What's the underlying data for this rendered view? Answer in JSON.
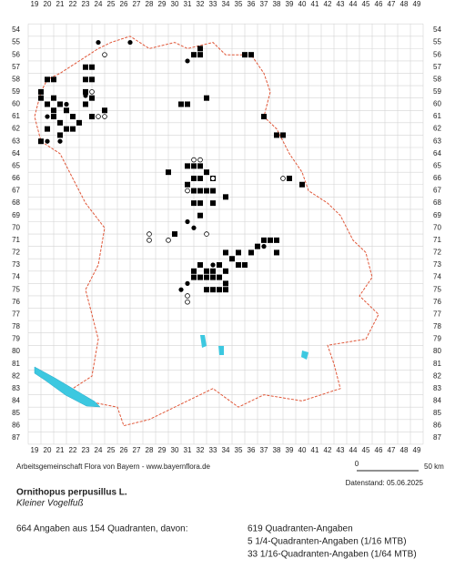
{
  "map": {
    "x_labels": [
      19,
      20,
      21,
      22,
      23,
      24,
      25,
      26,
      27,
      28,
      29,
      30,
      31,
      32,
      33,
      34,
      35,
      36,
      37,
      38,
      39,
      40,
      41,
      42,
      43,
      44,
      45,
      46,
      47,
      48,
      49
    ],
    "y_labels": [
      54,
      55,
      56,
      57,
      58,
      59,
      60,
      61,
      62,
      63,
      64,
      65,
      66,
      67,
      68,
      69,
      70,
      71,
      72,
      73,
      74,
      75,
      76,
      77,
      78,
      79,
      80,
      81,
      82,
      83,
      84,
      85,
      86,
      87
    ],
    "squares": [
      [
        19.5,
        59
      ],
      [
        20,
        58
      ],
      [
        20.5,
        58
      ],
      [
        19.5,
        59.5
      ],
      [
        20,
        60
      ],
      [
        20.5,
        59.5
      ],
      [
        21,
        60
      ],
      [
        21.5,
        60.5
      ],
      [
        20.5,
        61
      ],
      [
        21,
        61.5
      ],
      [
        21.5,
        62
      ],
      [
        22,
        61
      ],
      [
        22,
        62
      ],
      [
        22.5,
        61.5
      ],
      [
        20,
        62
      ],
      [
        19.5,
        63
      ],
      [
        20.5,
        60.5
      ],
      [
        21,
        62.5
      ],
      [
        23,
        57
      ],
      [
        23.5,
        57
      ],
      [
        23,
        58
      ],
      [
        23.5,
        58
      ],
      [
        23,
        59
      ],
      [
        23.5,
        59.5
      ],
      [
        23,
        60
      ],
      [
        23.5,
        61
      ],
      [
        24.5,
        60.5
      ],
      [
        32,
        55.5
      ],
      [
        32,
        56
      ],
      [
        31.5,
        56
      ],
      [
        35.5,
        56
      ],
      [
        36,
        56
      ],
      [
        30.5,
        60
      ],
      [
        31,
        60
      ],
      [
        32.5,
        59.5
      ],
      [
        37,
        61
      ],
      [
        38,
        62.5
      ],
      [
        38.5,
        62.5
      ],
      [
        39,
        66
      ],
      [
        40,
        66.5
      ],
      [
        29.5,
        65.5
      ],
      [
        31,
        65
      ],
      [
        31.5,
        65
      ],
      [
        32,
        65
      ],
      [
        32.5,
        65.5
      ],
      [
        32,
        66
      ],
      [
        33,
        66
      ],
      [
        31,
        66.5
      ],
      [
        31.5,
        67
      ],
      [
        32,
        67
      ],
      [
        32.5,
        67
      ],
      [
        33,
        67
      ],
      [
        31.5,
        68
      ],
      [
        32,
        68
      ],
      [
        33,
        68
      ],
      [
        31.5,
        66
      ],
      [
        34,
        67.5
      ],
      [
        32,
        69
      ],
      [
        30,
        70.5
      ],
      [
        37,
        71
      ],
      [
        37.5,
        71
      ],
      [
        38,
        71
      ],
      [
        38,
        72
      ],
      [
        36.5,
        71.5
      ],
      [
        36,
        72
      ],
      [
        35,
        72
      ],
      [
        34.5,
        72.5
      ],
      [
        35.5,
        73
      ],
      [
        35,
        73
      ],
      [
        34,
        73.5
      ],
      [
        33,
        73.5
      ],
      [
        32,
        73
      ],
      [
        31.5,
        74
      ],
      [
        32,
        74
      ],
      [
        32.5,
        74
      ],
      [
        33,
        74
      ],
      [
        33.5,
        74
      ],
      [
        34,
        74.5
      ],
      [
        32.5,
        75
      ],
      [
        33,
        75
      ],
      [
        33.5,
        75
      ],
      [
        34,
        75
      ],
      [
        31.5,
        73.5
      ],
      [
        33.5,
        73
      ],
      [
        34,
        72
      ],
      [
        32.5,
        73.5
      ]
    ],
    "filled_circles": [
      [
        24,
        55
      ],
      [
        26.5,
        55
      ],
      [
        31,
        56.5
      ],
      [
        20,
        61
      ],
      [
        21.5,
        60
      ],
      [
        23,
        59.3
      ],
      [
        20,
        63
      ],
      [
        21,
        63
      ],
      [
        31,
        69.5
      ],
      [
        31.5,
        70
      ],
      [
        30.5,
        75
      ],
      [
        31,
        74.5
      ],
      [
        33,
        73
      ],
      [
        37,
        71.5
      ]
    ],
    "open_circles": [
      [
        24.5,
        56
      ],
      [
        23.5,
        59
      ],
      [
        24,
        61
      ],
      [
        24.5,
        61
      ],
      [
        31.5,
        64.5
      ],
      [
        32,
        64.5
      ],
      [
        28,
        70.5
      ],
      [
        28,
        71
      ],
      [
        29.5,
        71
      ],
      [
        32.5,
        70.5
      ],
      [
        31,
        75.5
      ],
      [
        31,
        76
      ],
      [
        31,
        67
      ],
      [
        38.5,
        66
      ],
      [
        33,
        66
      ]
    ],
    "credit": "Arbeitsgemeinschaft Flora von Bayern - www.bayernflora.de",
    "scale_start": "0",
    "scale_end": "50 km",
    "data_date": "Datenstand: 05.06.2025",
    "title": "Ornithopus perpusillus L.",
    "common_name": "Kleiner Vogelfuß",
    "summary": "664 Angaben aus 154 Quadranten, davon:",
    "breakdown": [
      "619 Quadranten-Angaben",
      "5 1/4-Quadranten-Angaben (1/16 MTB)",
      "33 1/16-Quadranten-Angaben (1/64 MTB)"
    ]
  }
}
